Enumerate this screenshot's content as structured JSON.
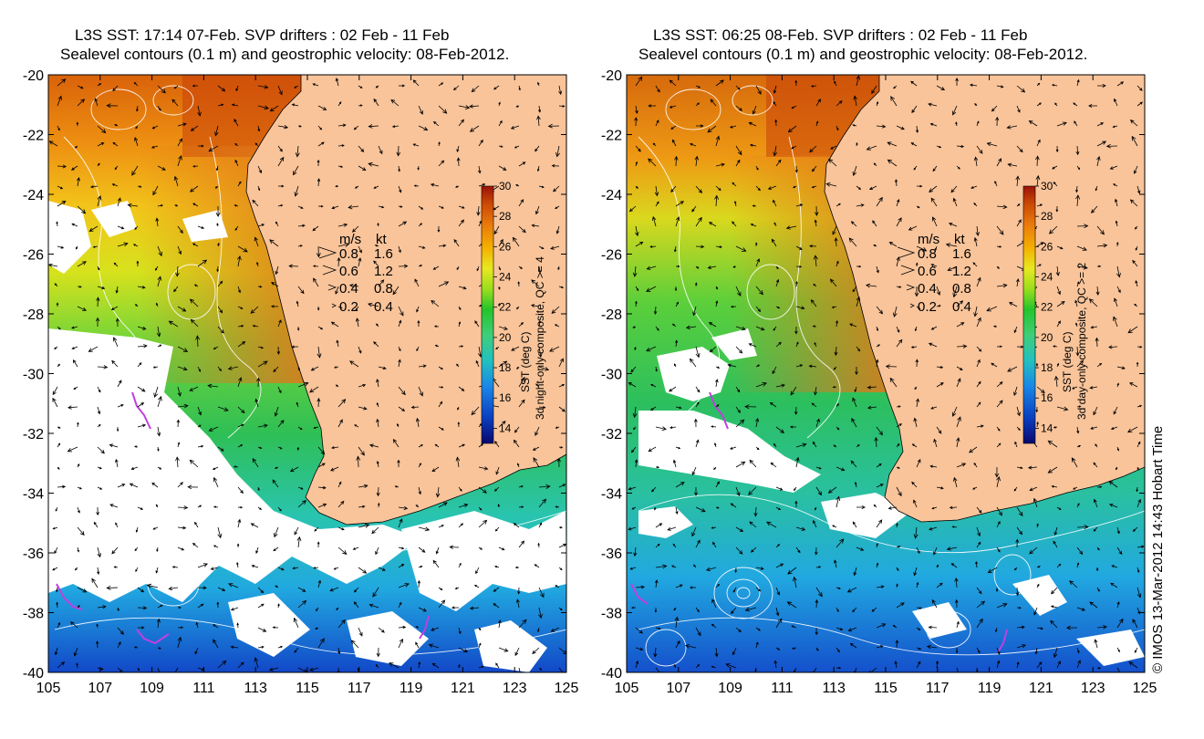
{
  "panels": [
    {
      "title_line1": "L3S SST: 17:14 07-Feb. SVP drifters : 02 Feb - 11 Feb",
      "title_line2": "Sealevel contours (0.1 m) and geostrophic velocity: 08-Feb-2012.",
      "colorbar_label_line1": "SST (deg C)",
      "colorbar_label_line2": "3d night-only composite, QC >= 4"
    },
    {
      "title_line1": "L3S SST: 06:25 08-Feb. SVP drifters : 02 Feb - 11 Feb",
      "title_line2": "Sealevel contours (0.1 m) and geostrophic velocity: 08-Feb-2012.",
      "colorbar_label_line1": "SST (deg C)",
      "colorbar_label_line2": "3d day-only composite, QC >= 2"
    }
  ],
  "axes": {
    "lat_ticks": [
      "-20",
      "-22",
      "-24",
      "-26",
      "-28",
      "-30",
      "-32",
      "-34",
      "-36",
      "-38",
      "-40"
    ],
    "lon_ticks": [
      "105",
      "107",
      "109",
      "111",
      "113",
      "115",
      "117",
      "119",
      "121",
      "123",
      "125"
    ],
    "lat_range": [
      -40,
      -20
    ],
    "lon_range": [
      105,
      125
    ]
  },
  "colorbar": {
    "ticks": [
      "30",
      "28",
      "26",
      "24",
      "22",
      "20",
      "18",
      "16",
      "14"
    ],
    "range": [
      13,
      30
    ]
  },
  "velocity_legend": {
    "header_ms": "m/s",
    "header_kt": "kt",
    "rows": [
      {
        "ms": "0.8",
        "kt": "1.6"
      },
      {
        "ms": "0.6",
        "kt": "1.2"
      },
      {
        "ms": "0.4",
        "kt": "0.8"
      },
      {
        "ms": "0.2",
        "kt": "0.4"
      }
    ]
  },
  "credit": "© IMOS 13-Mar-2012 14:43 Hobart Time",
  "colors": {
    "land": "#f9c49a",
    "no_data": "#ffffff",
    "sst_scale": [
      "#08086e",
      "#0a3fc0",
      "#1a86e6",
      "#22c0c0",
      "#3fce7a",
      "#25c42a",
      "#9bde1e",
      "#e8e820",
      "#f4b000",
      "#ea7a0c",
      "#cc4a06",
      "#9a1208"
    ]
  }
}
